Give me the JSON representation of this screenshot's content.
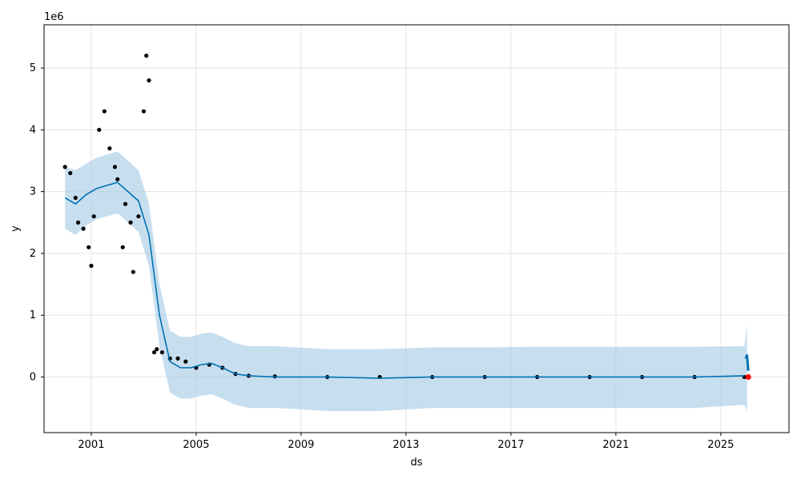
{
  "chart_data": {
    "type": "line",
    "xlabel": "ds",
    "ylabel": "y",
    "y_offset_label": "1e6",
    "x_range": [
      1999.2,
      2027.6
    ],
    "y_range": [
      -900000,
      5700000
    ],
    "x_ticks": [
      {
        "value": 2001,
        "label": "2001"
      },
      {
        "value": 2005,
        "label": "2005"
      },
      {
        "value": 2009,
        "label": "2009"
      },
      {
        "value": 2013,
        "label": "2013"
      },
      {
        "value": 2017,
        "label": "2017"
      },
      {
        "value": 2021,
        "label": "2021"
      },
      {
        "value": 2025,
        "label": "2025"
      }
    ],
    "y_ticks": [
      {
        "value": 0,
        "label": "0"
      },
      {
        "value": 1000000,
        "label": "1"
      },
      {
        "value": 2000000,
        "label": "2"
      },
      {
        "value": 3000000,
        "label": "3"
      },
      {
        "value": 4000000,
        "label": "4"
      },
      {
        "value": 5000000,
        "label": "5"
      }
    ],
    "grid": true,
    "colors": {
      "forecast_line": "#0072b2",
      "uncertainty_band": "#a9cde6",
      "observations": "#000000",
      "highlight_point": "#ff0000"
    },
    "series": [
      {
        "role": "observations",
        "kind": "scatter",
        "x": [
          2000.0,
          2000.2,
          2000.4,
          2000.5,
          2000.7,
          2000.9,
          2001.0,
          2001.1,
          2001.3,
          2001.5,
          2001.7,
          2001.9,
          2002.0,
          2002.2,
          2002.3,
          2002.5,
          2002.6,
          2002.8,
          2003.0,
          2003.1,
          2003.2,
          2003.4,
          2003.5,
          2003.7,
          2004.0,
          2004.3,
          2004.6,
          2005.0,
          2005.5,
          2006.0,
          2006.5,
          2007.0,
          2008.0,
          2010.0,
          2012.0,
          2014.0,
          2016.0,
          2018.0,
          2020.0,
          2022.0,
          2024.0,
          2025.9
        ],
        "y": [
          3400000,
          3300000,
          2900000,
          2500000,
          2400000,
          2100000,
          1800000,
          2600000,
          4000000,
          4300000,
          3700000,
          3400000,
          3200000,
          2100000,
          2800000,
          2500000,
          1700000,
          2600000,
          4300000,
          5200000,
          4800000,
          400000,
          450000,
          400000,
          300000,
          300000,
          250000,
          150000,
          200000,
          150000,
          50000,
          20000,
          10000,
          0,
          0,
          0,
          0,
          0,
          0,
          0,
          0,
          0
        ]
      },
      {
        "role": "forecast",
        "kind": "line",
        "x": [
          2000.0,
          2000.4,
          2000.8,
          2001.2,
          2001.6,
          2002.0,
          2002.4,
          2002.8,
          2003.2,
          2003.6,
          2004.0,
          2004.4,
          2004.8,
          2005.2,
          2005.6,
          2006.0,
          2006.5,
          2007.0,
          2008.0,
          2010.0,
          2012.0,
          2014.0,
          2016.0,
          2018.0,
          2020.0,
          2022.0,
          2024.0,
          2025.9
        ],
        "y": [
          2900000,
          2800000,
          2950000,
          3050000,
          3100000,
          3150000,
          3000000,
          2850000,
          2300000,
          1000000,
          250000,
          150000,
          150000,
          200000,
          220000,
          150000,
          50000,
          20000,
          0,
          0,
          -20000,
          0,
          0,
          0,
          0,
          0,
          0,
          20000
        ]
      },
      {
        "role": "forecast_horizon",
        "kind": "line",
        "x": [
          2025.95,
          2026.0,
          2026.05
        ],
        "y": [
          300000,
          350000,
          100000
        ]
      },
      {
        "role": "uncertainty_upper",
        "kind": "band",
        "x": [
          2000.0,
          2000.4,
          2000.8,
          2001.2,
          2001.6,
          2002.0,
          2002.4,
          2002.8,
          2003.2,
          2003.6,
          2004.0,
          2004.4,
          2004.8,
          2005.2,
          2005.6,
          2006.0,
          2006.5,
          2007.0,
          2008.0,
          2010.0,
          2012.0,
          2014.0,
          2016.0,
          2018.0,
          2020.0,
          2022.0,
          2024.0,
          2025.9,
          2026.0
        ],
        "y": [
          3400000,
          3350000,
          3450000,
          3550000,
          3600000,
          3650000,
          3500000,
          3350000,
          2800000,
          1500000,
          750000,
          650000,
          650000,
          700000,
          720000,
          650000,
          550000,
          500000,
          500000,
          450000,
          450000,
          480000,
          480000,
          490000,
          490000,
          490000,
          490000,
          500000,
          850000
        ]
      },
      {
        "role": "uncertainty_lower",
        "kind": "band",
        "x": [
          2000.0,
          2000.4,
          2000.8,
          2001.2,
          2001.6,
          2002.0,
          2002.4,
          2002.8,
          2003.2,
          2003.6,
          2004.0,
          2004.4,
          2004.8,
          2005.2,
          2005.6,
          2006.0,
          2006.5,
          2007.0,
          2008.0,
          2010.0,
          2012.0,
          2014.0,
          2016.0,
          2018.0,
          2020.0,
          2022.0,
          2024.0,
          2025.9,
          2026.0
        ],
        "y": [
          2400000,
          2300000,
          2450000,
          2550000,
          2600000,
          2650000,
          2500000,
          2350000,
          1800000,
          500000,
          -250000,
          -350000,
          -350000,
          -300000,
          -280000,
          -350000,
          -450000,
          -500000,
          -500000,
          -550000,
          -550000,
          -500000,
          -500000,
          -500000,
          -500000,
          -500000,
          -500000,
          -450000,
          -550000
        ]
      },
      {
        "role": "highlight",
        "kind": "scatter",
        "x": [
          2026.05
        ],
        "y": [
          0
        ]
      }
    ]
  }
}
